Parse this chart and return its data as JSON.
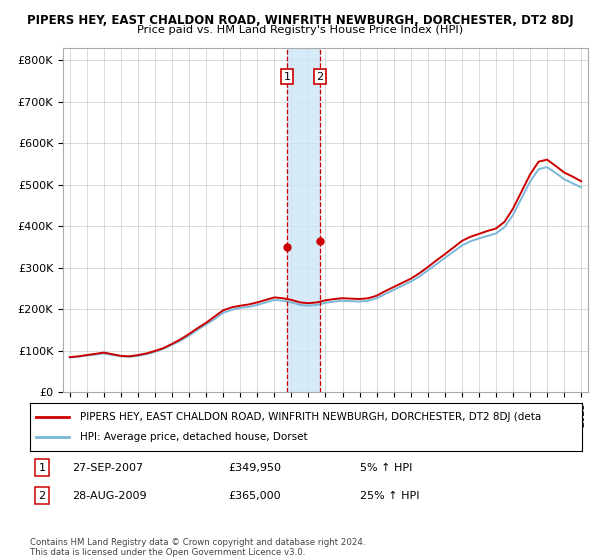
{
  "title": "PIPERS HEY, EAST CHALDON ROAD, WINFRITH NEWBURGH, DORCHESTER, DT2 8DJ",
  "subtitle": "Price paid vs. HM Land Registry's House Price Index (HPI)",
  "ylabel_ticks": [
    "£0",
    "£100K",
    "£200K",
    "£300K",
    "£400K",
    "£500K",
    "£600K",
    "£700K",
    "£800K"
  ],
  "ytick_values": [
    0,
    100000,
    200000,
    300000,
    400000,
    500000,
    600000,
    700000,
    800000
  ],
  "ylim": [
    0,
    830000
  ],
  "hpi_color": "#7ab8d9",
  "price_color": "#cc0000",
  "marker_color": "#cc0000",
  "shade_color": "#cce5f5",
  "transaction1": {
    "date": "27-SEP-2007",
    "price": 349950,
    "label": "1",
    "pct": "5% ↑ HPI",
    "x": 2007.75
  },
  "transaction2": {
    "date": "28-AUG-2009",
    "price": 365000,
    "label": "2",
    "pct": "25% ↑ HPI",
    "x": 2009.67
  },
  "legend_line1": "PIPERS HEY, EAST CHALDON ROAD, WINFRITH NEWBURGH, DORCHESTER, DT2 8DJ (deta",
  "legend_line2": "HPI: Average price, detached house, Dorset",
  "footer": "Contains HM Land Registry data © Crown copyright and database right 2024.\nThis data is licensed under the Open Government Licence v3.0.",
  "hpi_x": [
    1995,
    1995.5,
    1996,
    1996.5,
    1997,
    1997.5,
    1998,
    1998.5,
    1999,
    1999.5,
    2000,
    2000.5,
    2001,
    2001.5,
    2002,
    2002.5,
    2003,
    2003.5,
    2004,
    2004.5,
    2005,
    2005.5,
    2006,
    2006.5,
    2007,
    2007.5,
    2008,
    2008.5,
    2009,
    2009.5,
    2010,
    2010.5,
    2011,
    2011.5,
    2012,
    2012.5,
    2013,
    2013.5,
    2014,
    2014.5,
    2015,
    2015.5,
    2016,
    2016.5,
    2017,
    2017.5,
    2018,
    2018.5,
    2019,
    2019.5,
    2020,
    2020.5,
    2021,
    2021.5,
    2022,
    2022.5,
    2023,
    2023.5,
    2024,
    2024.5,
    2025
  ],
  "hpi_y": [
    83000,
    85000,
    88000,
    90000,
    93000,
    89000,
    86000,
    85000,
    87000,
    91000,
    97000,
    104000,
    114000,
    124000,
    136000,
    150000,
    163000,
    176000,
    191000,
    198000,
    203000,
    205000,
    210000,
    216000,
    222000,
    220000,
    216000,
    210000,
    208000,
    210000,
    215000,
    218000,
    220000,
    219000,
    218000,
    220000,
    226000,
    236000,
    246000,
    256000,
    266000,
    278000,
    293000,
    308000,
    323000,
    338000,
    353000,
    363000,
    370000,
    376000,
    382000,
    397000,
    427000,
    467000,
    507000,
    537000,
    542000,
    528000,
    513000,
    503000,
    493000
  ],
  "price_y": [
    84000,
    86000,
    89000,
    92000,
    95000,
    91000,
    87000,
    86000,
    89000,
    93000,
    99000,
    106000,
    116000,
    127000,
    140000,
    154000,
    167000,
    182000,
    197000,
    204000,
    208000,
    211000,
    216000,
    222000,
    228000,
    226000,
    222000,
    216000,
    214000,
    216000,
    221000,
    224000,
    226000,
    225000,
    224000,
    226000,
    232000,
    243000,
    253000,
    263000,
    273000,
    286000,
    301000,
    317000,
    332000,
    348000,
    364000,
    374000,
    381000,
    388000,
    394000,
    410000,
    442000,
    483000,
    524000,
    555000,
    560000,
    545000,
    529000,
    519000,
    508000
  ]
}
